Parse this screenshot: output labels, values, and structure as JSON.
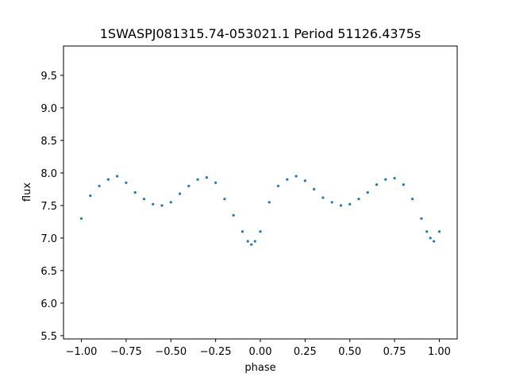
{
  "chart_data": {
    "type": "scatter",
    "title": "1SWASPJ081315.74-053021.1 Period 51126.4375s",
    "xlabel": "phase",
    "ylabel": "flux",
    "xlim": [
      -1.1,
      1.1
    ],
    "ylim": [
      5.45,
      9.95
    ],
    "x_ticks": [
      -1.0,
      -0.75,
      -0.5,
      -0.25,
      0.0,
      0.25,
      0.5,
      0.75,
      1.0
    ],
    "x_tick_labels": [
      "−1.00",
      "−0.75",
      "−0.50",
      "−0.25",
      "0.00",
      "0.25",
      "0.50",
      "0.75",
      "1.00"
    ],
    "y_ticks": [
      5.5,
      6.0,
      6.5,
      7.0,
      7.5,
      8.0,
      8.5,
      9.0,
      9.5
    ],
    "y_tick_labels": [
      "5.5",
      "6.0",
      "6.5",
      "7.0",
      "7.5",
      "8.0",
      "8.5",
      "9.0",
      "9.5"
    ],
    "grid": false,
    "marker_color": "#1f77b4",
    "series": [
      {
        "x": [
          -1.0,
          -0.95,
          -0.9,
          -0.85,
          -0.8,
          -0.75,
          -0.7,
          -0.65,
          -0.6,
          -0.55,
          -0.5,
          -0.45,
          -0.4,
          -0.35,
          -0.3,
          -0.25,
          -0.2,
          -0.15,
          -0.1,
          -0.07,
          -0.05,
          -0.03,
          0.0,
          0.05,
          0.1,
          0.15,
          0.2,
          0.25,
          0.3,
          0.35,
          0.4,
          0.45,
          0.5,
          0.55,
          0.6,
          0.65,
          0.7,
          0.75,
          0.8,
          0.85,
          0.9,
          0.93,
          0.95,
          0.97,
          1.0
        ],
        "y": [
          7.3,
          7.65,
          7.8,
          7.9,
          7.95,
          7.85,
          7.7,
          7.6,
          7.52,
          7.5,
          7.55,
          7.68,
          7.8,
          7.9,
          7.93,
          7.85,
          7.6,
          7.35,
          7.1,
          6.95,
          6.9,
          6.95,
          7.1,
          7.55,
          7.8,
          7.9,
          7.95,
          7.88,
          7.75,
          7.62,
          7.55,
          7.5,
          7.52,
          7.6,
          7.7,
          7.82,
          7.9,
          7.92,
          7.82,
          7.6,
          7.3,
          7.1,
          7.0,
          6.95,
          7.1
        ]
      }
    ]
  }
}
